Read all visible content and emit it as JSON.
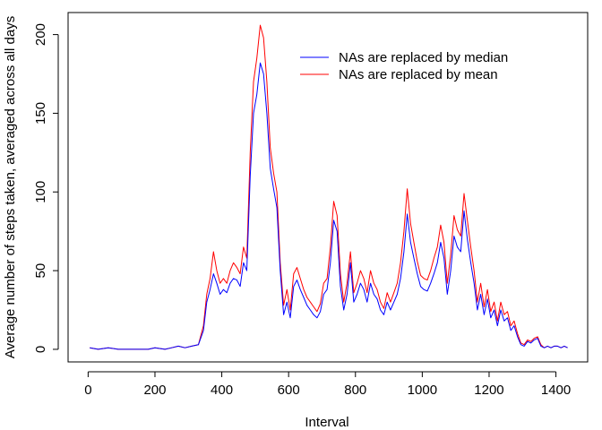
{
  "chart_data": {
    "type": "line",
    "title": "",
    "xlabel": "Interval",
    "ylabel": "Average number of steps taken, averaged across all days",
    "xlim": [
      -60,
      1495
    ],
    "ylim": [
      -8,
      214
    ],
    "xticks": [
      "0",
      "200",
      "400",
      "600",
      "800",
      "1000",
      "1200",
      "1400"
    ],
    "yticks": [
      "0",
      "50",
      "100",
      "150",
      "200"
    ],
    "grid": false,
    "legend_position": "top-right",
    "series": [
      {
        "name": "NAs are replaced by median",
        "color": "#0000ff",
        "x": [
          5,
          30,
          60,
          90,
          120,
          150,
          180,
          200,
          230,
          250,
          270,
          290,
          310,
          330,
          345,
          355,
          365,
          375,
          385,
          395,
          405,
          415,
          425,
          435,
          445,
          455,
          465,
          475,
          485,
          495,
          505,
          515,
          525,
          535,
          545,
          555,
          565,
          575,
          585,
          595,
          605,
          615,
          625,
          635,
          645,
          655,
          665,
          675,
          685,
          695,
          705,
          715,
          725,
          735,
          745,
          755,
          765,
          775,
          785,
          795,
          805,
          815,
          825,
          835,
          845,
          855,
          865,
          875,
          885,
          895,
          905,
          915,
          925,
          935,
          945,
          955,
          965,
          975,
          985,
          995,
          1005,
          1015,
          1025,
          1035,
          1045,
          1055,
          1065,
          1075,
          1085,
          1095,
          1105,
          1115,
          1125,
          1135,
          1145,
          1155,
          1165,
          1175,
          1185,
          1195,
          1205,
          1215,
          1225,
          1235,
          1245,
          1255,
          1265,
          1275,
          1285,
          1295,
          1305,
          1315,
          1325,
          1335,
          1345,
          1355,
          1365,
          1375,
          1385,
          1395,
          1405,
          1415,
          1425,
          1435
        ],
        "values": [
          1,
          0,
          1,
          0,
          0,
          0,
          0,
          1,
          0,
          1,
          2,
          1,
          2,
          3,
          12,
          30,
          38,
          48,
          42,
          35,
          38,
          36,
          42,
          45,
          44,
          40,
          55,
          50,
          110,
          150,
          162,
          182,
          175,
          150,
          115,
          102,
          90,
          50,
          22,
          30,
          20,
          40,
          44,
          38,
          33,
          28,
          25,
          22,
          20,
          24,
          35,
          38,
          55,
          82,
          75,
          40,
          25,
          35,
          55,
          30,
          35,
          42,
          38,
          30,
          42,
          35,
          32,
          25,
          22,
          30,
          25,
          30,
          35,
          45,
          62,
          86,
          68,
          58,
          48,
          40,
          38,
          37,
          42,
          48,
          55,
          68,
          58,
          35,
          50,
          72,
          65,
          62,
          88,
          70,
          55,
          42,
          25,
          35,
          22,
          32,
          20,
          25,
          15,
          25,
          18,
          20,
          12,
          15,
          8,
          3,
          2,
          5,
          4,
          6,
          7,
          2,
          1,
          2,
          1,
          2,
          2,
          1,
          2,
          1
        ]
      },
      {
        "name": "NAs are replaced by mean",
        "color": "#ff0000",
        "x": [
          5,
          30,
          60,
          90,
          120,
          150,
          180,
          200,
          230,
          250,
          270,
          290,
          310,
          330,
          345,
          355,
          365,
          375,
          385,
          395,
          405,
          415,
          425,
          435,
          445,
          455,
          465,
          475,
          485,
          495,
          505,
          515,
          525,
          535,
          545,
          555,
          565,
          575,
          585,
          595,
          605,
          615,
          625,
          635,
          645,
          655,
          665,
          675,
          685,
          695,
          705,
          715,
          725,
          735,
          745,
          755,
          765,
          775,
          785,
          795,
          805,
          815,
          825,
          835,
          845,
          855,
          865,
          875,
          885,
          895,
          905,
          915,
          925,
          935,
          945,
          955,
          965,
          975,
          985,
          995,
          1005,
          1015,
          1025,
          1035,
          1045,
          1055,
          1065,
          1075,
          1085,
          1095,
          1105,
          1115,
          1125,
          1135,
          1145,
          1155,
          1165,
          1175,
          1185,
          1195,
          1205,
          1215,
          1225,
          1235,
          1245,
          1255,
          1265,
          1275,
          1285,
          1295,
          1305,
          1315,
          1325,
          1335,
          1345,
          1355,
          1365,
          1375,
          1385,
          1395,
          1405,
          1415,
          1425,
          1435
        ],
        "values": [
          1,
          0,
          1,
          0,
          0,
          0,
          0,
          1,
          0,
          1,
          2,
          1,
          2,
          3,
          15,
          35,
          45,
          62,
          50,
          42,
          45,
          42,
          50,
          55,
          52,
          48,
          65,
          58,
          125,
          170,
          185,
          206,
          198,
          170,
          128,
          112,
          100,
          55,
          28,
          38,
          25,
          48,
          52,
          45,
          38,
          33,
          30,
          27,
          24,
          29,
          42,
          45,
          65,
          94,
          85,
          48,
          30,
          42,
          62,
          36,
          42,
          50,
          45,
          36,
          50,
          42,
          38,
          30,
          26,
          36,
          30,
          36,
          42,
          55,
          75,
          102,
          80,
          68,
          56,
          47,
          45,
          44,
          50,
          58,
          65,
          79,
          68,
          42,
          60,
          85,
          76,
          72,
          99,
          82,
          65,
          50,
          30,
          42,
          27,
          38,
          24,
          30,
          18,
          30,
          22,
          24,
          15,
          18,
          10,
          4,
          3,
          6,
          5,
          7,
          8,
          3,
          1,
          2,
          1,
          2,
          2,
          1,
          2,
          1
        ]
      }
    ]
  }
}
